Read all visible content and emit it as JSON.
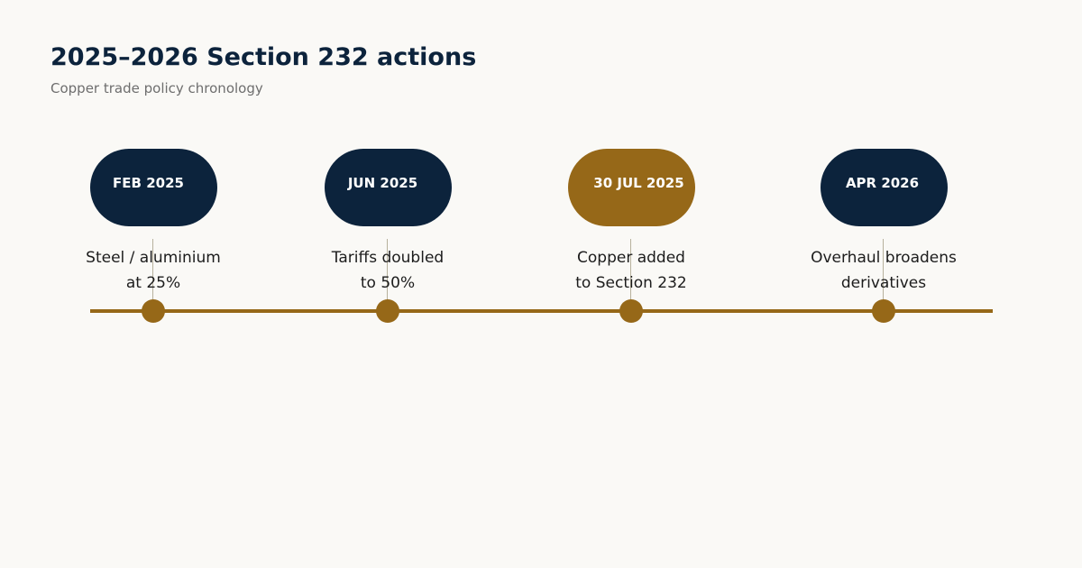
{
  "header": {
    "title": "2025–2026 Section 232 actions",
    "subtitle": "Copper trade policy chronology"
  },
  "colors": {
    "background": "#faf9f6",
    "navy": "#0c233c",
    "gold": "#966818",
    "connector": "#b7b19d"
  },
  "milestones": [
    {
      "date": "FEB 2025",
      "caption_line1": "Steel / aluminium",
      "caption_line2": "at 25%",
      "highlighted": false
    },
    {
      "date": "JUN 2025",
      "caption_line1": "Tariffs doubled",
      "caption_line2": "to 50%",
      "highlighted": false
    },
    {
      "date": "30 JUL 2025",
      "caption_line1": "Copper added",
      "caption_line2": "to Section 232",
      "highlighted": true
    },
    {
      "date": "APR 2026",
      "caption_line1": "Overhaul broadens",
      "caption_line2": "derivatives",
      "highlighted": false
    }
  ]
}
